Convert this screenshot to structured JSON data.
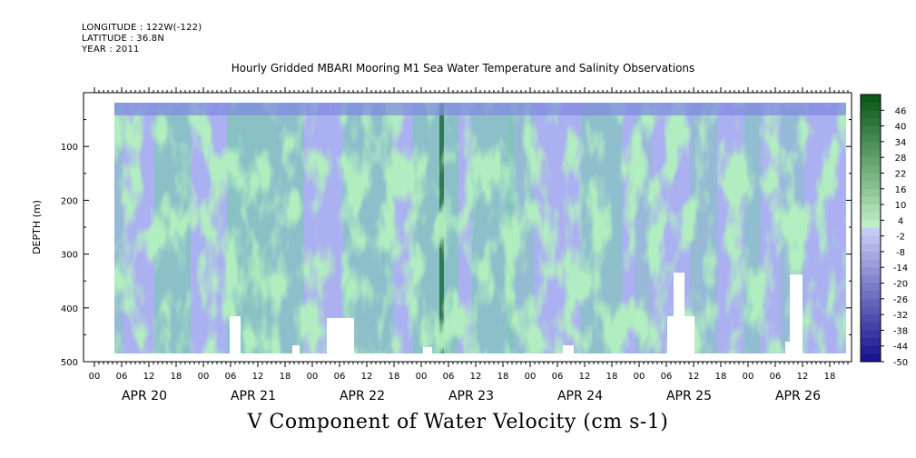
{
  "meta": {
    "longitude": "LONGITUDE : 122W(-122)",
    "latitude": "LATITUDE : 36.8N",
    "year": "YEAR : 2011"
  },
  "chart_data": {
    "type": "heatmap",
    "title": "Hourly Gridded MBARI Mooring M1 Sea Water Temperature and Salinity Observations",
    "xlabel": "V Component of Water Velocity (cm s-1)",
    "ylabel": "DEPTH (m)",
    "y_ticks": [
      100,
      200,
      300,
      400,
      500
    ],
    "ylim": [
      500,
      0
    ],
    "hour_ticks": [
      "00",
      "06",
      "12",
      "18",
      "00",
      "06",
      "12",
      "18",
      "00",
      "06",
      "12",
      "18",
      "00",
      "06",
      "12",
      "18",
      "00",
      "06",
      "12",
      "18",
      "00",
      "06",
      "12",
      "18",
      "00",
      "06",
      "12",
      "18"
    ],
    "dates": [
      "APR 20",
      "APR 21",
      "APR 22",
      "APR 23",
      "APR 24",
      "APR 25",
      "APR 26"
    ],
    "colorbar_labels": [
      "46",
      "40",
      "34",
      "28",
      "22",
      "16",
      "10",
      "4",
      "-2",
      "-8",
      "-14",
      "-20",
      "-26",
      "-32",
      "-38",
      "-44",
      "-50"
    ],
    "colorbar_range": [
      -50,
      52
    ],
    "colors": {
      "strong_positive": "#0a5a1e",
      "positive": "#4fe07a",
      "weak_positive": "#9ff0a8",
      "weak_negative": "#b4b8f0",
      "negative": "#8c8ee8",
      "strong_negative": "#1a1a8c",
      "nodata": "#ffffff"
    }
  }
}
